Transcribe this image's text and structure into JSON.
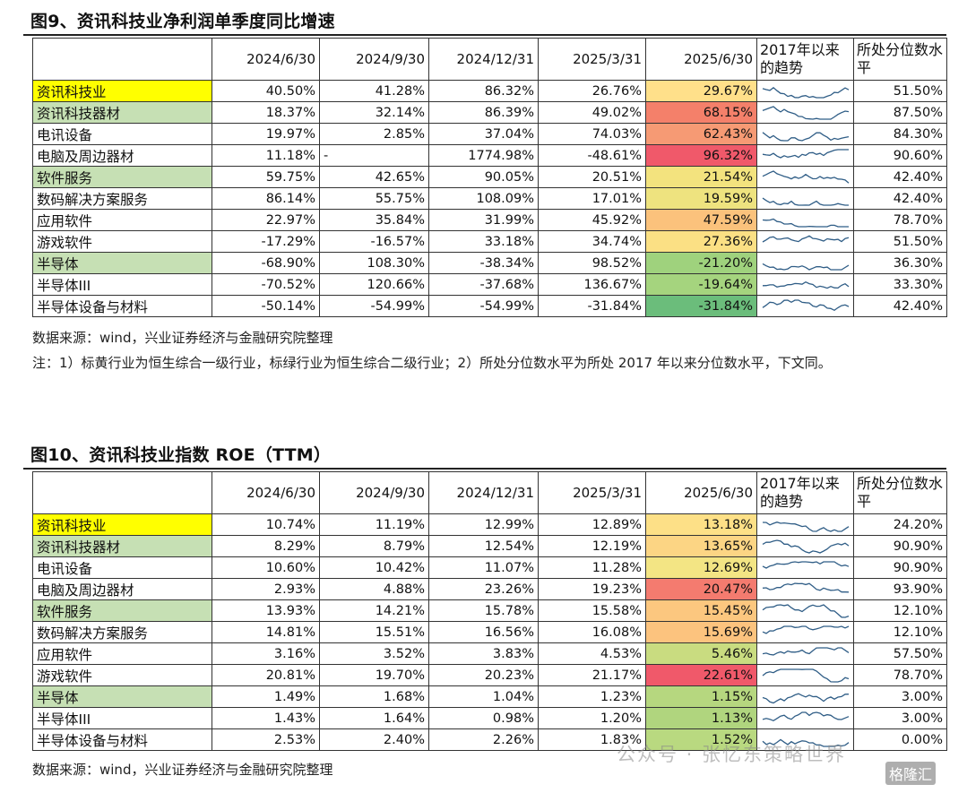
{
  "table1": {
    "title": "图9、资讯科技业净利润单季度同比增速",
    "headers": [
      "",
      "2024/6/30",
      "2024/9/30",
      "2024/12/31",
      "2025/3/31",
      "2025/6/30",
      "2017年以来的趋势",
      "所处分位数水平"
    ],
    "rows": [
      {
        "name": "资讯科技业",
        "hl": "yellow",
        "v": [
          "40.50%",
          "41.28%",
          "86.32%",
          "26.76%",
          "29.67%"
        ],
        "c": "#ffe08a",
        "pct": "51.50%"
      },
      {
        "name": "资讯科技器材",
        "hl": "green",
        "v": [
          "18.37%",
          "32.14%",
          "86.39%",
          "49.02%",
          "68.15%"
        ],
        "c": "#f4806a",
        "pct": "87.50%"
      },
      {
        "name": "电讯设备",
        "hl": "",
        "v": [
          "19.97%",
          "2.85%",
          "37.04%",
          "74.03%",
          "62.43%"
        ],
        "c": "#f69a74",
        "pct": "84.30%"
      },
      {
        "name": "电脑及周边器材",
        "hl": "",
        "v": [
          "11.18%",
          "-",
          "1774.98%",
          "-48.61%",
          "96.32%"
        ],
        "c": "#f0596a",
        "pct": "90.60%"
      },
      {
        "name": "软件服务",
        "hl": "green",
        "v": [
          "59.75%",
          "42.65%",
          "90.05%",
          "20.51%",
          "21.54%"
        ],
        "c": "#f3e37e",
        "pct": "42.40%"
      },
      {
        "name": "数码解决方案服务",
        "hl": "",
        "v": [
          "86.14%",
          "55.75%",
          "108.09%",
          "17.01%",
          "19.59%"
        ],
        "c": "#eee37f",
        "pct": "42.40%"
      },
      {
        "name": "应用软件",
        "hl": "",
        "v": [
          "22.97%",
          "35.84%",
          "31.99%",
          "45.92%",
          "47.59%"
        ],
        "c": "#fbc27c",
        "pct": "78.70%"
      },
      {
        "name": "游戏软件",
        "hl": "",
        "v": [
          "-17.29%",
          "-16.57%",
          "33.18%",
          "34.74%",
          "27.36%"
        ],
        "c": "#fbe084",
        "pct": "51.50%"
      },
      {
        "name": "半导体",
        "hl": "green",
        "v": [
          "-68.90%",
          "108.30%",
          "-38.34%",
          "98.52%",
          "-21.20%"
        ],
        "c": "#9fd27d",
        "pct": "36.30%"
      },
      {
        "name": "半导体III",
        "hl": "",
        "v": [
          "-70.52%",
          "120.66%",
          "-37.68%",
          "136.67%",
          "-19.64%"
        ],
        "c": "#a5d47e",
        "pct": "33.30%"
      },
      {
        "name": "半导体设备与材料",
        "hl": "",
        "v": [
          "-50.14%",
          "-54.99%",
          "-54.99%",
          "-31.84%",
          "-31.84%"
        ],
        "c": "#6bbd7b",
        "pct": "42.40%"
      }
    ],
    "source": "数据来源：wind，兴业证券经济与金融研究院整理",
    "note": "注：1）标黄行业为恒生综合一级行业，标绿行业为恒生综合二级行业；2）所处分位数水平为所处 2017 年以来分位数水平，下文同。"
  },
  "table2": {
    "title": "图10、资讯科技业指数 ROE（TTM）",
    "headers": [
      "",
      "2024/6/30",
      "2024/9/30",
      "2024/12/31",
      "2025/3/31",
      "2025/6/30",
      "2017年以来的趋势",
      "所处分位数水平"
    ],
    "rows": [
      {
        "name": "资讯科技业",
        "hl": "yellow",
        "v": [
          "10.74%",
          "11.19%",
          "12.99%",
          "12.89%",
          "13.18%"
        ],
        "c": "#fde087",
        "pct": "24.20%"
      },
      {
        "name": "资讯科技器材",
        "hl": "green",
        "v": [
          "8.29%",
          "8.79%",
          "12.54%",
          "12.19%",
          "13.65%"
        ],
        "c": "#fcd584",
        "pct": "90.90%"
      },
      {
        "name": "电讯设备",
        "hl": "",
        "v": [
          "10.60%",
          "10.42%",
          "11.07%",
          "11.28%",
          "12.69%"
        ],
        "c": "#f3e584",
        "pct": "90.90%"
      },
      {
        "name": "电脑及周边器材",
        "hl": "",
        "v": [
          "2.93%",
          "4.88%",
          "23.26%",
          "19.23%",
          "20.47%"
        ],
        "c": "#f47b6f",
        "pct": "93.90%"
      },
      {
        "name": "软件服务",
        "hl": "green",
        "v": [
          "13.93%",
          "14.21%",
          "15.78%",
          "15.58%",
          "15.45%"
        ],
        "c": "#fcc77f",
        "pct": "12.10%"
      },
      {
        "name": "数码解决方案服务",
        "hl": "",
        "v": [
          "14.81%",
          "15.51%",
          "16.56%",
          "16.08%",
          "15.69%"
        ],
        "c": "#fcc37e",
        "pct": "12.10%"
      },
      {
        "name": "应用软件",
        "hl": "",
        "v": [
          "3.16%",
          "3.52%",
          "3.83%",
          "4.53%",
          "5.46%"
        ],
        "c": "#c9dc80",
        "pct": "57.50%"
      },
      {
        "name": "游戏软件",
        "hl": "",
        "v": [
          "20.81%",
          "19.70%",
          "20.23%",
          "21.17%",
          "22.61%"
        ],
        "c": "#f0596a",
        "pct": "78.70%"
      },
      {
        "name": "半导体",
        "hl": "green",
        "v": [
          "1.49%",
          "1.68%",
          "1.04%",
          "1.23%",
          "1.15%"
        ],
        "c": "#b6d77f",
        "pct": "3.00%"
      },
      {
        "name": "半导体III",
        "hl": "",
        "v": [
          "1.43%",
          "1.64%",
          "0.98%",
          "1.20%",
          "1.13%"
        ],
        "c": "#b0d57e",
        "pct": "3.00%"
      },
      {
        "name": "半导体设备与材料",
        "hl": "",
        "v": [
          "2.53%",
          "2.40%",
          "2.26%",
          "1.83%",
          "1.52%"
        ],
        "c": "#b9d980",
        "pct": "0.00%"
      }
    ],
    "source": "数据来源：wind，兴业证券经济与金融研究院整理"
  },
  "watermark": {
    "text": "公众号 · 张忆东策略世界",
    "badge": "格隆汇"
  },
  "sparkline_color": "#2f5d86"
}
